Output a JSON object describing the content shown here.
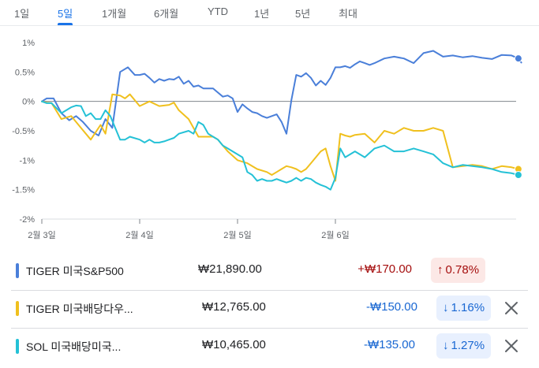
{
  "tabs": [
    {
      "label": "1일",
      "active": false
    },
    {
      "label": "5일",
      "active": true
    },
    {
      "label": "1개월",
      "active": false
    },
    {
      "label": "6개월",
      "active": false
    },
    {
      "label": "YTD",
      "active": false
    },
    {
      "label": "1년",
      "active": false
    },
    {
      "label": "5년",
      "active": false
    },
    {
      "label": "최대",
      "active": false
    }
  ],
  "chart_data": {
    "type": "line",
    "y_unit": "%",
    "ylim": [
      -2,
      1
    ],
    "yticks": [
      1,
      0.5,
      0,
      -0.5,
      -1,
      -1.5,
      -2
    ],
    "ytick_labels": [
      "1%",
      "0.5%",
      "0%",
      "-0.5%",
      "-1%",
      "-1.5%",
      "-2%"
    ],
    "xlim": [
      0,
      4.9
    ],
    "xticks": [
      0,
      1,
      2,
      3
    ],
    "xtick_labels": [
      "2월 3일",
      "2월 4일",
      "2월 5일",
      "2월 6일"
    ],
    "zero_line": true,
    "series": [
      {
        "name": "TIGER 미국S&P500",
        "color": "#4a7fd9",
        "x": [
          0,
          0.05,
          0.12,
          0.2,
          0.28,
          0.35,
          0.42,
          0.5,
          0.58,
          0.65,
          0.72,
          0.8,
          0.88,
          0.95,
          1.0,
          1.05,
          1.1,
          1.15,
          1.2,
          1.25,
          1.3,
          1.35,
          1.4,
          1.45,
          1.5,
          1.55,
          1.6,
          1.65,
          1.7,
          1.75,
          1.8,
          1.85,
          1.9,
          1.95,
          2.0,
          2.05,
          2.1,
          2.15,
          2.2,
          2.25,
          2.3,
          2.35,
          2.4,
          2.45,
          2.5,
          2.55,
          2.6,
          2.65,
          2.7,
          2.75,
          2.8,
          2.85,
          2.9,
          2.95,
          3.0,
          3.05,
          3.1,
          3.15,
          3.2,
          3.25,
          3.3,
          3.35,
          3.4,
          3.5,
          3.6,
          3.7,
          3.8,
          3.9,
          4.0,
          4.1,
          4.2,
          4.3,
          4.4,
          4.5,
          4.6,
          4.7,
          4.8,
          4.87,
          4.9
        ],
        "y": [
          0,
          0.05,
          0.05,
          -0.2,
          -0.32,
          -0.25,
          -0.35,
          -0.5,
          -0.58,
          -0.3,
          -0.45,
          0.5,
          0.58,
          0.45,
          0.45,
          0.47,
          0.4,
          0.32,
          0.38,
          0.35,
          0.38,
          0.37,
          0.42,
          0.3,
          0.35,
          0.25,
          0.27,
          0.22,
          0.22,
          0.22,
          0.15,
          0.08,
          0.1,
          0.05,
          -0.18,
          -0.05,
          -0.12,
          -0.18,
          -0.2,
          -0.25,
          -0.28,
          -0.25,
          -0.22,
          -0.35,
          -0.55,
          0.02,
          0.45,
          0.42,
          0.48,
          0.4,
          0.27,
          0.35,
          0.28,
          0.4,
          0.58,
          0.58,
          0.6,
          0.57,
          0.63,
          0.68,
          0.65,
          0.62,
          0.65,
          0.73,
          0.76,
          0.73,
          0.65,
          0.82,
          0.86,
          0.76,
          0.78,
          0.75,
          0.77,
          0.74,
          0.72,
          0.79,
          0.78,
          0.73,
          0.66
        ]
      },
      {
        "name": "TIGER 미국배당다우...",
        "color": "#f0c01e",
        "x": [
          0,
          0.05,
          0.1,
          0.2,
          0.3,
          0.4,
          0.5,
          0.6,
          0.65,
          0.72,
          0.8,
          0.85,
          0.9,
          1.0,
          1.1,
          1.2,
          1.3,
          1.35,
          1.4,
          1.5,
          1.6,
          1.65,
          1.7,
          1.75,
          1.8,
          1.85,
          1.9,
          2.0,
          2.1,
          2.2,
          2.3,
          2.35,
          2.4,
          2.45,
          2.5,
          2.55,
          2.6,
          2.65,
          2.7,
          2.75,
          2.8,
          2.85,
          2.9,
          2.95,
          3.0,
          3.05,
          3.1,
          3.15,
          3.2,
          3.3,
          3.4,
          3.5,
          3.6,
          3.7,
          3.8,
          3.9,
          4.0,
          4.1,
          4.2,
          4.3,
          4.4,
          4.5,
          4.6,
          4.7,
          4.8,
          4.87,
          4.9
        ],
        "y": [
          0,
          -0.02,
          -0.03,
          -0.3,
          -0.25,
          -0.45,
          -0.65,
          -0.4,
          -0.55,
          0.12,
          0.1,
          0.05,
          0.12,
          -0.08,
          0.0,
          -0.08,
          -0.06,
          -0.02,
          -0.15,
          -0.3,
          -0.6,
          -0.6,
          -0.6,
          -0.6,
          -0.65,
          -0.75,
          -0.85,
          -1.0,
          -1.05,
          -1.15,
          -1.2,
          -1.25,
          -1.2,
          -1.15,
          -1.1,
          -1.12,
          -1.15,
          -1.2,
          -1.15,
          -1.05,
          -0.95,
          -0.85,
          -0.8,
          -1.1,
          -1.35,
          -0.55,
          -0.58,
          -0.6,
          -0.57,
          -0.55,
          -0.7,
          -0.5,
          -0.55,
          -0.45,
          -0.5,
          -0.5,
          -0.45,
          -0.5,
          -1.12,
          -1.1,
          -1.08,
          -1.1,
          -1.15,
          -1.1,
          -1.12,
          -1.15,
          -1.13
        ]
      },
      {
        "name": "SOL 미국배당미국...",
        "color": "#24c1d6",
        "x": [
          0,
          0.05,
          0.1,
          0.2,
          0.3,
          0.35,
          0.4,
          0.45,
          0.5,
          0.55,
          0.6,
          0.65,
          0.7,
          0.75,
          0.8,
          0.85,
          0.9,
          1.0,
          1.05,
          1.1,
          1.15,
          1.2,
          1.25,
          1.3,
          1.35,
          1.4,
          1.5,
          1.55,
          1.6,
          1.65,
          1.7,
          1.75,
          1.8,
          1.85,
          1.9,
          2.0,
          2.05,
          2.1,
          2.15,
          2.2,
          2.25,
          2.3,
          2.35,
          2.4,
          2.45,
          2.5,
          2.55,
          2.6,
          2.65,
          2.7,
          2.75,
          2.8,
          2.85,
          2.9,
          2.95,
          3.0,
          3.05,
          3.1,
          3.15,
          3.2,
          3.3,
          3.4,
          3.5,
          3.6,
          3.7,
          3.8,
          3.9,
          4.0,
          4.1,
          4.2,
          4.3,
          4.4,
          4.5,
          4.6,
          4.7,
          4.8,
          4.87,
          4.9
        ],
        "y": [
          0,
          -0.03,
          -0.03,
          -0.2,
          -0.1,
          -0.07,
          -0.08,
          -0.25,
          -0.2,
          -0.3,
          -0.3,
          -0.15,
          -0.25,
          -0.45,
          -0.65,
          -0.65,
          -0.6,
          -0.65,
          -0.7,
          -0.65,
          -0.7,
          -0.7,
          -0.68,
          -0.65,
          -0.62,
          -0.55,
          -0.5,
          -0.55,
          -0.35,
          -0.4,
          -0.55,
          -0.6,
          -0.65,
          -0.75,
          -0.8,
          -0.9,
          -0.95,
          -1.2,
          -1.25,
          -1.35,
          -1.32,
          -1.35,
          -1.35,
          -1.32,
          -1.35,
          -1.38,
          -1.35,
          -1.3,
          -1.35,
          -1.3,
          -1.32,
          -1.38,
          -1.42,
          -1.45,
          -1.5,
          -1.3,
          -0.8,
          -0.95,
          -0.9,
          -0.85,
          -0.95,
          -0.8,
          -0.75,
          -0.85,
          -0.85,
          -0.8,
          -0.85,
          -0.9,
          -1.05,
          -1.12,
          -1.08,
          -1.1,
          -1.12,
          -1.15,
          -1.2,
          -1.22,
          -1.25,
          -1.27
        ]
      }
    ]
  },
  "holdings": [
    {
      "name": "TIGER 미국S&P500",
      "price": "₩21,890.00",
      "change": "+₩170.00",
      "percent": "0.78%",
      "arrow": "↑",
      "direction": "up",
      "color": "#4a7fd9",
      "removable": false
    },
    {
      "name": "TIGER 미국배당다우...",
      "price": "₩12,765.00",
      "change": "-₩150.00",
      "percent": "1.16%",
      "arrow": "↓",
      "direction": "down",
      "color": "#f0c01e",
      "removable": true
    },
    {
      "name": "SOL 미국배당미국...",
      "price": "₩10,465.00",
      "change": "-₩135.00",
      "percent": "1.27%",
      "arrow": "↓",
      "direction": "down",
      "color": "#24c1d6",
      "removable": true
    }
  ],
  "colors": {
    "up_text": "#a50e0e",
    "up_bg": "#fce8e6",
    "down_text": "#1967d2",
    "down_bg": "#e8f0fe",
    "remove_icon": "#5f6368"
  }
}
